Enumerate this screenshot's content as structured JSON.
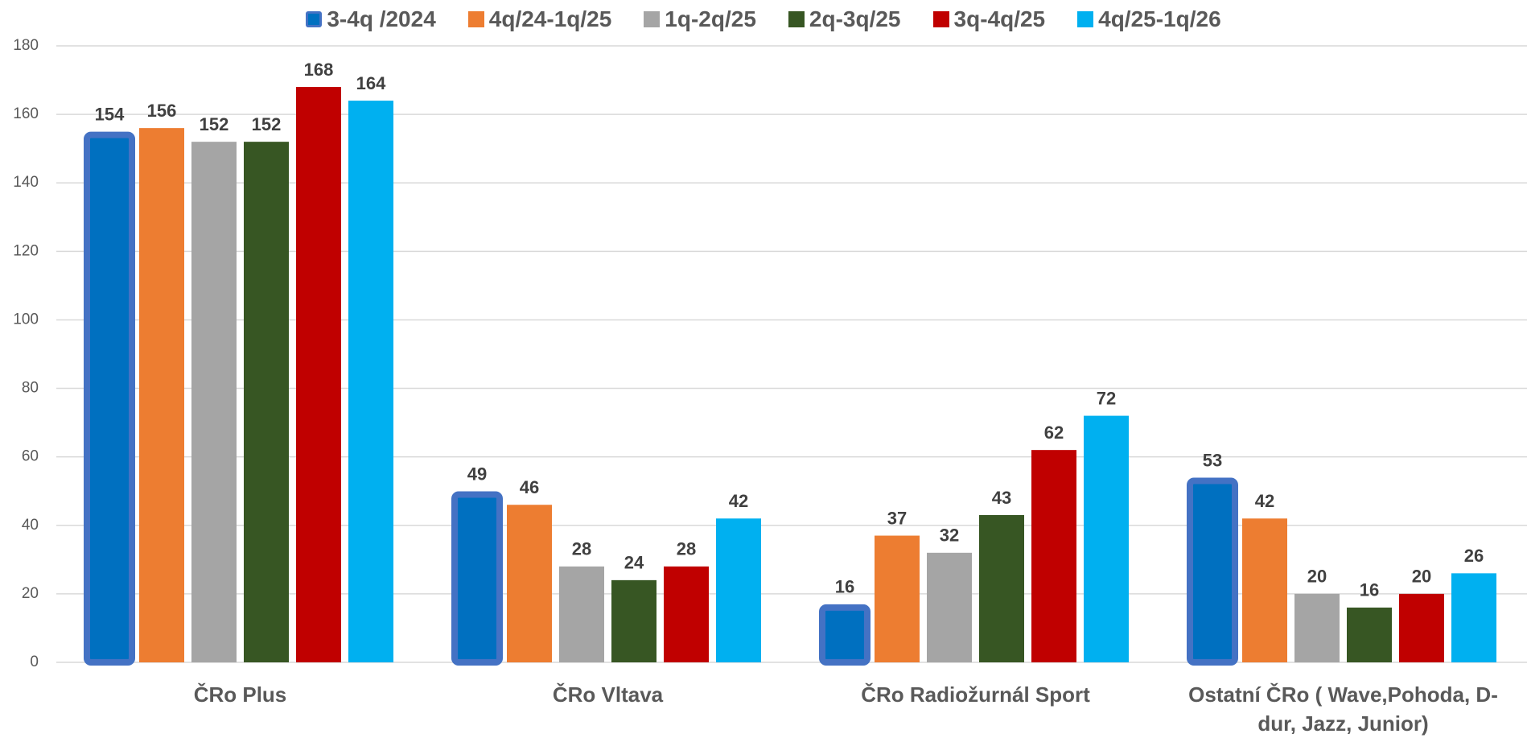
{
  "chart_data": {
    "type": "bar",
    "categories": [
      "ČRo Plus",
      "ČRo Vltava",
      "ČRo Radiožurnál Sport",
      "Ostatní ČRo ( Wave,Pohoda, D-dur, Jazz, Junior)"
    ],
    "series": [
      {
        "name": "3-4q /2024",
        "color": "#0070c0",
        "stroke": "#4472c4",
        "values": [
          154,
          49,
          16,
          53
        ]
      },
      {
        "name": "4q/24-1q/25",
        "color": "#ed7d31",
        "values": [
          156,
          46,
          37,
          42
        ]
      },
      {
        "name": "1q-2q/25",
        "color": "#a5a5a5",
        "values": [
          152,
          28,
          32,
          20
        ]
      },
      {
        "name": "2q-3q/25",
        "color": "#375623",
        "values": [
          152,
          24,
          43,
          16
        ]
      },
      {
        "name": "3q-4q/25",
        "color": "#c00000",
        "values": [
          168,
          28,
          62,
          20
        ]
      },
      {
        "name": "4q/25-1q/26",
        "color": "#00b0f0",
        "values": [
          164,
          42,
          72,
          26
        ]
      }
    ],
    "ylim": [
      0,
      180
    ],
    "yticks": [
      0,
      20,
      40,
      60,
      80,
      100,
      120,
      140,
      160,
      180
    ],
    "grid": true,
    "legend": "top"
  }
}
